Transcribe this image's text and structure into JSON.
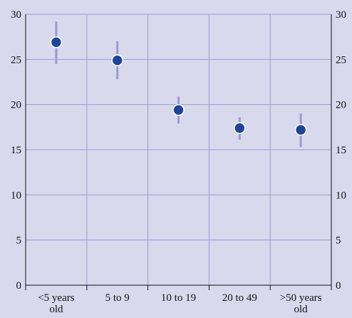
{
  "chart_data": {
    "type": "scatter",
    "categories": [
      [
        "<5 years",
        "old"
      ],
      [
        "5 to 9"
      ],
      [
        "10 to 19"
      ],
      [
        "20 to 49"
      ],
      [
        ">50 years",
        "old"
      ]
    ],
    "series": [
      {
        "values": [
          26.9,
          24.9,
          19.4,
          17.4,
          17.2
        ],
        "error_low": [
          24.5,
          22.8,
          17.9,
          16.1,
          15.3
        ],
        "error_high": [
          29.2,
          27.0,
          20.9,
          18.6,
          19.0
        ]
      }
    ],
    "ylim": [
      0,
      30
    ],
    "yticks": [
      0,
      5,
      10,
      15,
      20,
      25,
      30
    ],
    "grid": true,
    "right_axis": true,
    "title": "",
    "xlabel": "",
    "ylabel": "",
    "colors": {
      "background": "#d9d9ee",
      "gridline": "#9a9ad2",
      "errorbar": "#9a9ad2",
      "marker": "#1f4596",
      "marker_edge": "#ffffff",
      "axis": "#111111"
    }
  }
}
